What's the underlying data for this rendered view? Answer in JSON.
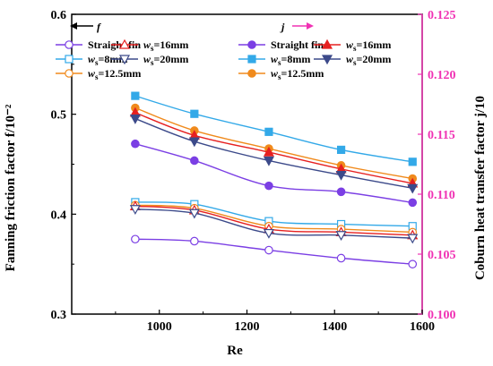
{
  "chart_data": {
    "type": "line",
    "xlabel": "Re",
    "ylabel_left": "Fanning friction factor f/10⁻²",
    "ylabel_right": "Coburn heat transfer factor j/10",
    "xlim": [
      800,
      1600
    ],
    "ylim_left": [
      0.3,
      0.6
    ],
    "ylim_right": [
      0.1,
      0.125
    ],
    "x_ticks": [
      1000,
      1200,
      1400,
      1600
    ],
    "y_left_ticks": [
      0.3,
      0.4,
      0.5,
      0.6
    ],
    "y_right_ticks": [
      0.1,
      0.105,
      0.11,
      0.115,
      0.12,
      0.125
    ],
    "grid": false,
    "legend_f_header": "f",
    "legend_j_header": "j",
    "x": [
      945,
      1080,
      1250,
      1415,
      1578
    ],
    "series_f": [
      {
        "name": "Straight fin",
        "color": "#7B3FE4",
        "marker": "circle",
        "values": [
          0.375,
          0.373,
          0.364,
          0.356,
          0.35
        ]
      },
      {
        "name": "ws=8mm",
        "color": "#33A9E8",
        "marker": "square",
        "values": [
          0.412,
          0.41,
          0.393,
          0.39,
          0.388
        ]
      },
      {
        "name": "ws=12.5mm",
        "color": "#F08A1C",
        "marker": "circle",
        "values": [
          0.409,
          0.406,
          0.388,
          0.385,
          0.382
        ]
      },
      {
        "name": "ws=16mm",
        "color": "#E62020",
        "marker": "triangle-up",
        "values": [
          0.408,
          0.404,
          0.385,
          0.382,
          0.379
        ]
      },
      {
        "name": "ws=20mm",
        "color": "#3C4A8A",
        "marker": "triangle-down",
        "values": [
          0.405,
          0.401,
          0.381,
          0.379,
          0.376
        ]
      }
    ],
    "series_j": [
      {
        "name": "Straight fin",
        "color": "#7B3FE4",
        "marker": "circle",
        "values": [
          0.1142,
          0.1128,
          0.1107,
          0.1102,
          0.1093
        ]
      },
      {
        "name": "ws=8mm",
        "color": "#33A9E8",
        "marker": "square",
        "values": [
          0.1182,
          0.1167,
          0.1152,
          0.1137,
          0.1127
        ]
      },
      {
        "name": "ws=12.5mm",
        "color": "#F08A1C",
        "marker": "circle",
        "values": [
          0.1172,
          0.1153,
          0.1138,
          0.1124,
          0.1113
        ]
      },
      {
        "name": "ws=16mm",
        "color": "#E62020",
        "marker": "triangle-up",
        "values": [
          0.1168,
          0.1149,
          0.1135,
          0.1121,
          0.1109
        ]
      },
      {
        "name": "ws=20mm",
        "color": "#3C4A8A",
        "marker": "triangle-down",
        "values": [
          0.1163,
          0.1144,
          0.1128,
          0.1116,
          0.1105
        ]
      }
    ],
    "colors": {
      "right_axis": "#F032B4",
      "axis": "#000000"
    }
  }
}
